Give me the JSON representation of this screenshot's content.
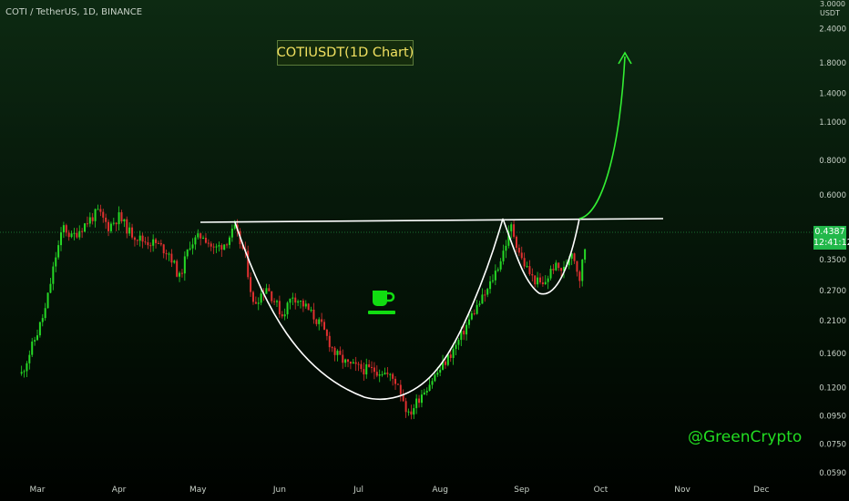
{
  "header": {
    "symbol": "COTI / TetherUS, 1D, BINANCE"
  },
  "annotation": {
    "title": "COTIUSDT(1D Chart)",
    "watermark": "@GreenCrypto",
    "icon": "coffee-cup-icon"
  },
  "price_axis": {
    "top_label": "3.0000",
    "unit": "USDT",
    "current_price": "0.4387",
    "countdown": "12:41:12"
  },
  "colors": {
    "up": "#26d826",
    "down": "#e03030",
    "line": "#ffffff",
    "arrow": "#33ee33",
    "label": "#c8d2c8"
  },
  "chart_data": {
    "type": "candlestick",
    "title": "COTIUSDT(1D Chart)",
    "y_scale": "log",
    "ylim": [
      0.056,
      3.0
    ],
    "y_ticks": [
      "2.4000",
      "1.8000",
      "1.4000",
      "1.1000",
      "0.8000",
      "0.6000",
      "0.3500",
      "0.2700",
      "0.2100",
      "0.1600",
      "0.1200",
      "0.0950",
      "0.0750",
      "0.0590"
    ],
    "x_ticks": [
      "Mar",
      "Apr",
      "May",
      "Jun",
      "Jul",
      "Aug",
      "Sep",
      "Oct",
      "Nov",
      "Dec"
    ],
    "current_price": 0.4387,
    "price_path": [
      [
        "Feb 24",
        0.135
      ],
      [
        "Mar 1",
        0.19
      ],
      [
        "Mar 4",
        0.23
      ],
      [
        "Mar 8",
        0.36
      ],
      [
        "Mar 11",
        0.46
      ],
      [
        "Mar 14",
        0.42
      ],
      [
        "Mar 20",
        0.48
      ],
      [
        "Mar 24",
        0.52
      ],
      [
        "Mar 28",
        0.46
      ],
      [
        "Apr 1",
        0.5
      ],
      [
        "Apr 5",
        0.44
      ],
      [
        "Apr 10",
        0.41
      ],
      [
        "Apr 15",
        0.4
      ],
      [
        "Apr 20",
        0.37
      ],
      [
        "Apr 24",
        0.3
      ],
      [
        "Apr 28",
        0.4
      ],
      [
        "May 3",
        0.43
      ],
      [
        "May 7",
        0.38
      ],
      [
        "May 11",
        0.4
      ],
      [
        "May 15",
        0.45
      ],
      [
        "May 19",
        0.36
      ],
      [
        "May 22",
        0.24
      ],
      [
        "May 27",
        0.28
      ],
      [
        "Jun 2",
        0.22
      ],
      [
        "Jun 6",
        0.26
      ],
      [
        "Jun 11",
        0.235
      ],
      [
        "Jun 17",
        0.2
      ],
      [
        "Jun 22",
        0.16
      ],
      [
        "Jun 27",
        0.145
      ],
      [
        "Jul 3",
        0.14
      ],
      [
        "Jul 10",
        0.138
      ],
      [
        "Jul 16",
        0.125
      ],
      [
        "Jul 20",
        0.095
      ],
      [
        "Jul 25",
        0.115
      ],
      [
        "Aug 1",
        0.14
      ],
      [
        "Aug 7",
        0.17
      ],
      [
        "Aug 13",
        0.22
      ],
      [
        "Aug 19",
        0.27
      ],
      [
        "Aug 24",
        0.35
      ],
      [
        "Aug 28",
        0.46
      ],
      [
        "Sep 1",
        0.35
      ],
      [
        "Sep 5",
        0.3
      ],
      [
        "Sep 9",
        0.28
      ],
      [
        "Sep 13",
        0.33
      ],
      [
        "Sep 17",
        0.32
      ],
      [
        "Sep 20",
        0.38
      ],
      [
        "Sep 23",
        0.3
      ],
      [
        "Sep 26",
        0.4387
      ]
    ],
    "resistance_line": {
      "from": [
        "May 2",
        0.47
      ],
      "to": [
        "Oct 5",
        0.475
      ]
    },
    "pattern": "cup and handle",
    "projection_arrow": {
      "from": [
        "Sep 27",
        0.475
      ],
      "to": [
        "Oct 6",
        2.0
      ]
    }
  }
}
